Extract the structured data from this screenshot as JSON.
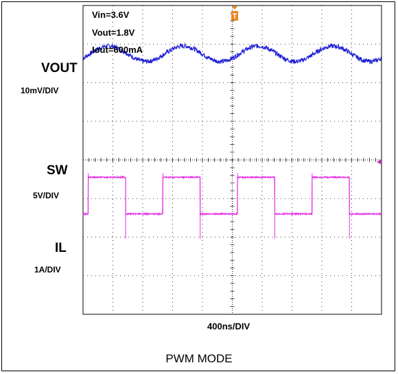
{
  "conditions": [
    "Vin=3.6V",
    "Vout=1.8V",
    "Iout=600mA"
  ],
  "caption": "PWM MODE",
  "trigger_marker": "T",
  "chart_data": {
    "type": "line",
    "title": "",
    "xlabel": "400ns/DIV",
    "grid": true,
    "x_divisions": 10,
    "y_divisions": 8,
    "xlim_ns": [
      0,
      4000
    ],
    "series": [
      {
        "name": "VOUT",
        "scale": "10mV/DIV",
        "color": "#1f1fd6",
        "waveform": "ripple",
        "period_ns": 1000,
        "amplitude_div": 0.2,
        "offset_div": 1.3
      },
      {
        "name": "SW",
        "scale": "5V/DIV",
        "color": "#e632e6",
        "waveform": "square",
        "period_ns": 1000,
        "duty": 0.5,
        "high_div": 1.55,
        "low_div": 0.45
      },
      {
        "name": "IL",
        "scale": "1A/DIV",
        "color": "#2ee02e",
        "waveform": "triangle",
        "period_ns": 1000,
        "amplitude_div": 0.2,
        "offset_div": 0.8
      }
    ]
  }
}
